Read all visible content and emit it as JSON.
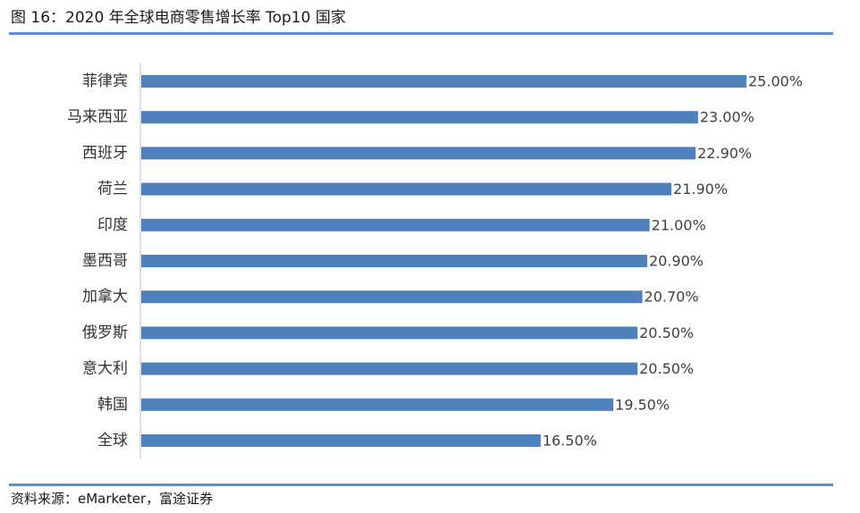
{
  "figure": {
    "title": "图 16：2020 年全球电商零售增长率 Top10 国家",
    "source": "资料来源：eMarketer，富途证券"
  },
  "colors": {
    "bar": "#4f81bd",
    "rule": "#5b8fd3",
    "axis": "#bfbfbf"
  },
  "chart_data": {
    "type": "bar",
    "orientation": "horizontal",
    "categories": [
      "菲律宾",
      "马来西亚",
      "西班牙",
      "荷兰",
      "印度",
      "墨西哥",
      "加拿大",
      "俄罗斯",
      "意大利",
      "韩国",
      "全球"
    ],
    "values": [
      25.0,
      23.0,
      22.9,
      21.9,
      21.0,
      20.9,
      20.7,
      20.5,
      20.5,
      19.5,
      16.5
    ],
    "value_labels": [
      "25.00%",
      "23.00%",
      "22.90%",
      "21.90%",
      "21.00%",
      "20.90%",
      "20.70%",
      "20.50%",
      "20.50%",
      "19.50%",
      "16.50%"
    ],
    "unit": "%",
    "xlim": [
      0,
      25
    ],
    "grid": false,
    "legend": "none"
  }
}
